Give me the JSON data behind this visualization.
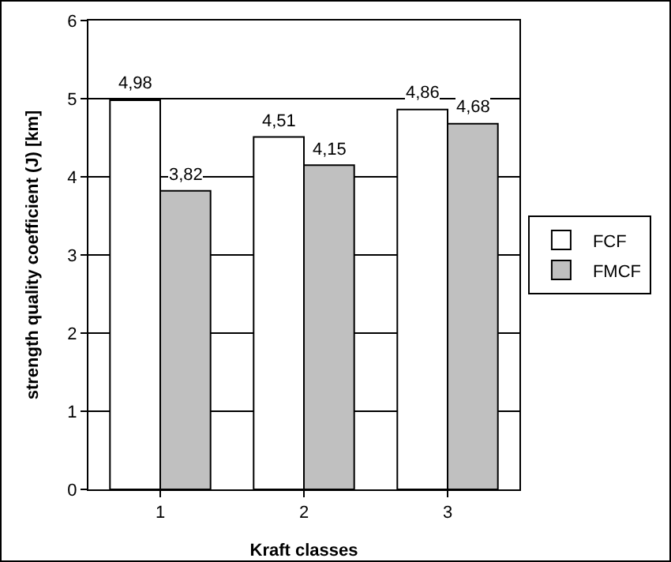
{
  "chart_data": {
    "type": "bar",
    "xlabel": "Kraft classes",
    "ylabel": "strength quality coefficient (J) [km]",
    "categories": [
      "1",
      "2",
      "3"
    ],
    "series": [
      {
        "name": "FCF",
        "color": "#ffffff",
        "values": [
          4.98,
          4.51,
          4.86
        ],
        "value_labels": [
          "4,98",
          "4,51",
          "4,86"
        ]
      },
      {
        "name": "FMCF",
        "color": "#c0c0c0",
        "values": [
          3.82,
          4.15,
          4.68
        ],
        "value_labels": [
          "3,82",
          "4,15",
          "4,68"
        ]
      }
    ],
    "ylim": [
      0,
      6
    ],
    "yticks": [
      0,
      1,
      2,
      3,
      4,
      5,
      6
    ],
    "grid": "y",
    "legend": "right"
  }
}
